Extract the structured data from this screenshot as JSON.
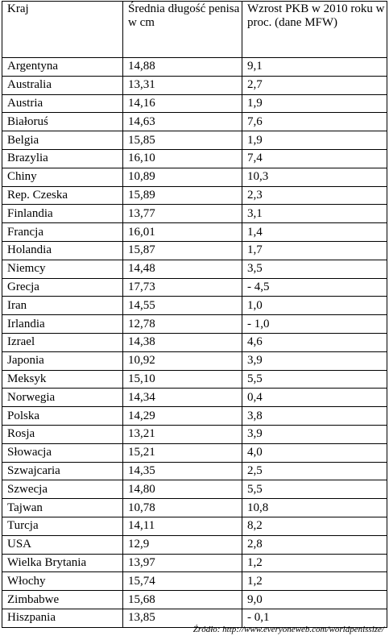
{
  "table": {
    "headers": [
      "Kraj",
      "Średnia długość penisa w cm",
      "Wzrost PKB w 2010 roku w proc. (dane MFW)"
    ],
    "rows": [
      [
        "Argentyna",
        "14,88",
        "9,1"
      ],
      [
        "Australia",
        "13,31",
        "2,7"
      ],
      [
        "Austria",
        "14,16",
        "1,9"
      ],
      [
        "Białoruś",
        "14,63",
        "7,6"
      ],
      [
        "Belgia",
        "15,85",
        "1,9"
      ],
      [
        "Brazylia",
        "16,10",
        "7,4"
      ],
      [
        "Chiny",
        "10,89",
        "10,3"
      ],
      [
        "Rep. Czeska",
        "15,89",
        "2,3"
      ],
      [
        "Finlandia",
        "13,77",
        "3,1"
      ],
      [
        "Francja",
        "16,01",
        "1,4"
      ],
      [
        "Holandia",
        "15,87",
        "1,7"
      ],
      [
        "Niemcy",
        "14,48",
        "3,5"
      ],
      [
        "Grecja",
        "17,73",
        "- 4,5"
      ],
      [
        "Iran",
        "14,55",
        "1,0"
      ],
      [
        "Irlandia",
        "12,78",
        "- 1,0"
      ],
      [
        "Izrael",
        "14,38",
        "4,6"
      ],
      [
        "Japonia",
        "10,92",
        "3,9"
      ],
      [
        "Meksyk",
        "15,10",
        "5,5"
      ],
      [
        "Norwegia",
        "14,34",
        "0,4"
      ],
      [
        "Polska",
        "14,29",
        "3,8"
      ],
      [
        "Rosja",
        "13,21",
        "3,9"
      ],
      [
        "Słowacja",
        "15,21",
        "4,0"
      ],
      [
        "Szwajcaria",
        "14,35",
        "2,5"
      ],
      [
        "Szwecja",
        "14,80",
        "5,5"
      ],
      [
        "Tajwan",
        "10,78",
        "10,8"
      ],
      [
        "Turcja",
        "14,11",
        "8,2"
      ],
      [
        "USA",
        "12,9",
        "2,8"
      ],
      [
        "Wielka Brytania",
        "13,97",
        "1,2"
      ],
      [
        "Włochy",
        "15,74",
        "1,2"
      ],
      [
        "Zimbabwe",
        "15,68",
        "9,0"
      ],
      [
        "Hiszpania",
        "13,85",
        "- 0,1"
      ]
    ]
  },
  "source": "Źródło: http://www.everyoneweb.com/worldpenissize/"
}
